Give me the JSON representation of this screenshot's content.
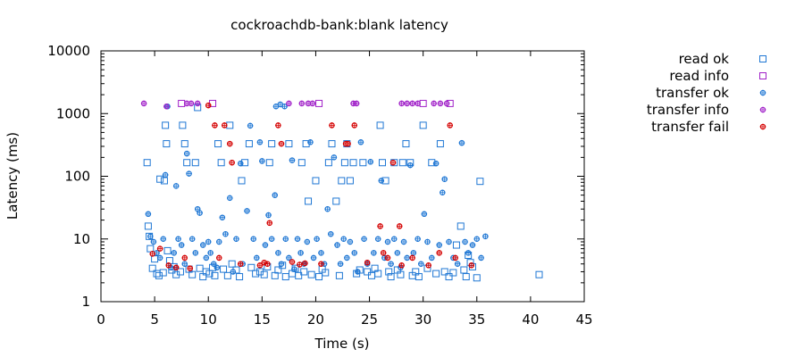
{
  "chart_data": {
    "type": "scatter",
    "title": "cockroachdb-bank:blank latency",
    "xlabel": "Time (s)",
    "ylabel": "Latency (ms)",
    "xlim": [
      0,
      45
    ],
    "ylim": [
      1,
      10000
    ],
    "yscale": "log",
    "x_ticks": [
      "0",
      "5",
      "10",
      "15",
      "20",
      "25",
      "30",
      "35",
      "40",
      "45"
    ],
    "y_ticks": [
      "1",
      "10",
      "100",
      "1000",
      "10000"
    ],
    "grid": false,
    "legend_position": "outside-right",
    "series": [
      {
        "name": "read ok",
        "color": "#1f77d4",
        "marker": "square",
        "points": [
          [
            4.3,
            165
          ],
          [
            4.4,
            16
          ],
          [
            4.5,
            11
          ],
          [
            4.6,
            7
          ],
          [
            4.8,
            3.4
          ],
          [
            5.0,
            4.8
          ],
          [
            5.2,
            2.8
          ],
          [
            5.4,
            2.6
          ],
          [
            5.5,
            90
          ],
          [
            5.8,
            2.9
          ],
          [
            5.9,
            85
          ],
          [
            6.0,
            650
          ],
          [
            6.1,
            330
          ],
          [
            6.2,
            6.5
          ],
          [
            6.4,
            4.5
          ],
          [
            6.6,
            3.2
          ],
          [
            6.8,
            3.6
          ],
          [
            7.0,
            2.7
          ],
          [
            7.4,
            3.0
          ],
          [
            7.6,
            650
          ],
          [
            7.8,
            330
          ],
          [
            8.0,
            165
          ],
          [
            8.2,
            3.3
          ],
          [
            8.5,
            2.7
          ],
          [
            8.8,
            165
          ],
          [
            9.0,
            1250
          ],
          [
            9.2,
            3.4
          ],
          [
            9.5,
            2.5
          ],
          [
            9.8,
            3.0
          ],
          [
            10.1,
            2.8
          ],
          [
            10.4,
            3.5
          ],
          [
            10.6,
            2.6
          ],
          [
            10.9,
            330
          ],
          [
            11.2,
            165
          ],
          [
            11.4,
            3.3
          ],
          [
            11.8,
            2.6
          ],
          [
            12.0,
            650
          ],
          [
            12.2,
            4.0
          ],
          [
            12.6,
            3.2
          ],
          [
            12.9,
            2.5
          ],
          [
            13.1,
            85
          ],
          [
            13.4,
            165
          ],
          [
            13.8,
            330
          ],
          [
            14.0,
            3.5
          ],
          [
            14.4,
            2.8
          ],
          [
            14.8,
            3.0
          ],
          [
            15.2,
            2.7
          ],
          [
            15.5,
            3.6
          ],
          [
            15.7,
            165
          ],
          [
            15.9,
            330
          ],
          [
            16.2,
            2.6
          ],
          [
            16.5,
            3.2
          ],
          [
            16.9,
            3.8
          ],
          [
            17.2,
            2.5
          ],
          [
            17.5,
            330
          ],
          [
            17.8,
            2.8
          ],
          [
            18.1,
            3.4
          ],
          [
            18.4,
            2.6
          ],
          [
            18.7,
            165
          ],
          [
            18.9,
            3.0
          ],
          [
            19.1,
            330
          ],
          [
            19.3,
            40
          ],
          [
            19.6,
            2.7
          ],
          [
            20.0,
            85
          ],
          [
            20.3,
            2.5
          ],
          [
            20.6,
            3.3
          ],
          [
            20.9,
            2.9
          ],
          [
            21.2,
            165
          ],
          [
            21.5,
            330
          ],
          [
            21.9,
            40
          ],
          [
            22.2,
            2.6
          ],
          [
            22.4,
            85
          ],
          [
            22.7,
            165
          ],
          [
            22.9,
            330
          ],
          [
            23.2,
            85
          ],
          [
            23.5,
            165
          ],
          [
            23.8,
            2.8
          ],
          [
            24.1,
            3.2
          ],
          [
            24.4,
            165
          ],
          [
            24.8,
            3.0
          ],
          [
            25.2,
            2.6
          ],
          [
            25.5,
            3.4
          ],
          [
            25.8,
            2.8
          ],
          [
            26.0,
            650
          ],
          [
            26.2,
            165
          ],
          [
            26.5,
            85
          ],
          [
            26.8,
            3.0
          ],
          [
            27.0,
            2.5
          ],
          [
            27.3,
            165
          ],
          [
            27.6,
            3.2
          ],
          [
            27.9,
            2.7
          ],
          [
            28.1,
            165
          ],
          [
            28.4,
            330
          ],
          [
            28.8,
            165
          ],
          [
            29.0,
            2.6
          ],
          [
            29.3,
            3.0
          ],
          [
            29.6,
            2.5
          ],
          [
            30.0,
            650
          ],
          [
            30.4,
            3.4
          ],
          [
            30.8,
            165
          ],
          [
            31.2,
            2.8
          ],
          [
            31.6,
            330
          ],
          [
            32.0,
            3.0
          ],
          [
            32.4,
            2.5
          ],
          [
            32.8,
            2.9
          ],
          [
            33.1,
            8
          ],
          [
            33.5,
            16
          ],
          [
            33.8,
            3.2
          ],
          [
            34.0,
            2.5
          ],
          [
            34.2,
            5.5
          ],
          [
            34.4,
            4.2
          ],
          [
            34.6,
            3.6
          ],
          [
            35.0,
            2.4
          ],
          [
            35.3,
            83
          ],
          [
            40.8,
            2.7
          ]
        ]
      },
      {
        "name": "read info",
        "color": "#a020c8",
        "marker": "square",
        "points": [
          [
            7.5,
            1450
          ],
          [
            10.4,
            1450
          ],
          [
            20.3,
            1450
          ],
          [
            30.0,
            1450
          ],
          [
            32.5,
            1450
          ]
        ]
      },
      {
        "name": "transfer ok",
        "color": "#1f77d4",
        "marker": "star",
        "points": [
          [
            4.4,
            25
          ],
          [
            4.6,
            11
          ],
          [
            4.9,
            9
          ],
          [
            5.2,
            6
          ],
          [
            5.5,
            5
          ],
          [
            5.8,
            10
          ],
          [
            6.0,
            105
          ],
          [
            6.2,
            1300
          ],
          [
            6.5,
            3.5
          ],
          [
            6.8,
            6
          ],
          [
            7.0,
            70
          ],
          [
            7.2,
            10
          ],
          [
            7.5,
            8
          ],
          [
            7.8,
            4
          ],
          [
            8.0,
            230
          ],
          [
            8.2,
            110
          ],
          [
            8.5,
            10
          ],
          [
            8.8,
            6
          ],
          [
            9.0,
            30
          ],
          [
            9.2,
            26
          ],
          [
            9.5,
            8
          ],
          [
            9.8,
            5
          ],
          [
            10.0,
            9
          ],
          [
            10.2,
            6
          ],
          [
            10.5,
            4
          ],
          [
            10.8,
            3.5
          ],
          [
            11.0,
            9
          ],
          [
            11.3,
            22
          ],
          [
            11.6,
            12
          ],
          [
            12.0,
            45
          ],
          [
            12.3,
            3.0
          ],
          [
            12.6,
            10
          ],
          [
            13.0,
            160
          ],
          [
            13.2,
            4
          ],
          [
            13.6,
            28
          ],
          [
            13.9,
            640
          ],
          [
            14.2,
            10
          ],
          [
            14.5,
            5
          ],
          [
            14.8,
            350
          ],
          [
            15.0,
            175
          ],
          [
            15.3,
            8
          ],
          [
            15.6,
            24
          ],
          [
            15.9,
            10
          ],
          [
            16.2,
            50
          ],
          [
            16.5,
            6
          ],
          [
            16.8,
            4
          ],
          [
            17.2,
            10
          ],
          [
            17.5,
            5
          ],
          [
            17.8,
            180
          ],
          [
            18.0,
            3.3
          ],
          [
            18.3,
            10
          ],
          [
            18.6,
            6
          ],
          [
            18.9,
            4
          ],
          [
            19.2,
            9
          ],
          [
            19.5,
            350
          ],
          [
            19.8,
            5
          ],
          [
            20.1,
            10
          ],
          [
            20.5,
            6
          ],
          [
            20.8,
            4
          ],
          [
            21.1,
            30
          ],
          [
            21.4,
            12
          ],
          [
            21.7,
            200
          ],
          [
            22.0,
            8
          ],
          [
            22.3,
            4
          ],
          [
            22.6,
            10
          ],
          [
            22.9,
            5
          ],
          [
            23.2,
            9
          ],
          [
            23.6,
            6
          ],
          [
            23.9,
            3
          ],
          [
            24.2,
            350
          ],
          [
            24.5,
            10
          ],
          [
            24.8,
            4
          ],
          [
            25.1,
            170
          ],
          [
            25.4,
            6
          ],
          [
            25.8,
            10
          ],
          [
            26.1,
            85
          ],
          [
            26.4,
            5
          ],
          [
            26.7,
            9
          ],
          [
            27.0,
            4
          ],
          [
            27.3,
            10
          ],
          [
            27.6,
            6
          ],
          [
            27.9,
            3.5
          ],
          [
            28.2,
            9
          ],
          [
            28.5,
            5
          ],
          [
            28.8,
            150
          ],
          [
            29.1,
            6
          ],
          [
            29.5,
            10
          ],
          [
            29.8,
            4
          ],
          [
            30.1,
            25
          ],
          [
            30.4,
            9
          ],
          [
            30.8,
            5
          ],
          [
            31.2,
            160
          ],
          [
            31.5,
            8
          ],
          [
            31.8,
            55
          ],
          [
            32.0,
            90
          ],
          [
            32.4,
            9
          ],
          [
            32.8,
            5
          ],
          [
            33.2,
            4
          ],
          [
            33.6,
            340
          ],
          [
            33.9,
            9
          ],
          [
            34.2,
            6
          ],
          [
            34.6,
            8
          ],
          [
            35.0,
            10
          ],
          [
            35.4,
            5
          ],
          [
            35.8,
            11
          ],
          [
            16.3,
            1300
          ],
          [
            16.7,
            1400
          ],
          [
            17.1,
            1300
          ]
        ]
      },
      {
        "name": "transfer info",
        "color": "#a020c8",
        "marker": "star",
        "points": [
          [
            4.0,
            1450
          ],
          [
            6.1,
            1300
          ],
          [
            8.0,
            1450
          ],
          [
            8.4,
            1450
          ],
          [
            9.0,
            1450
          ],
          [
            17.5,
            1450
          ],
          [
            18.7,
            1450
          ],
          [
            19.3,
            1450
          ],
          [
            19.7,
            1450
          ],
          [
            23.5,
            1450
          ],
          [
            23.8,
            1450
          ],
          [
            28.0,
            1450
          ],
          [
            28.5,
            1450
          ],
          [
            29.0,
            1450
          ],
          [
            29.5,
            1450
          ],
          [
            31.0,
            1450
          ],
          [
            31.6,
            1450
          ],
          [
            32.2,
            1450
          ]
        ]
      },
      {
        "name": "transfer fail",
        "color": "#d40000",
        "marker": "star",
        "points": [
          [
            4.8,
            5.8
          ],
          [
            5.5,
            7
          ],
          [
            6.3,
            3.8
          ],
          [
            7.0,
            3.5
          ],
          [
            7.8,
            5
          ],
          [
            8.3,
            3.4
          ],
          [
            10.0,
            1350
          ],
          [
            10.6,
            650
          ],
          [
            11.5,
            650
          ],
          [
            12.0,
            330
          ],
          [
            12.2,
            165
          ],
          [
            13.0,
            4
          ],
          [
            15.2,
            4.2
          ],
          [
            15.5,
            4.0
          ],
          [
            15.7,
            18
          ],
          [
            16.5,
            650
          ],
          [
            16.8,
            330
          ],
          [
            17.8,
            4.3
          ],
          [
            18.5,
            3.9
          ],
          [
            19.0,
            4.1
          ],
          [
            21.5,
            650
          ],
          [
            22.8,
            330
          ],
          [
            23.0,
            330
          ],
          [
            23.6,
            650
          ],
          [
            26.0,
            16
          ],
          [
            26.3,
            6
          ],
          [
            26.7,
            5
          ],
          [
            27.2,
            165
          ],
          [
            27.8,
            16
          ],
          [
            28.0,
            3.8
          ],
          [
            29.0,
            5
          ],
          [
            30.5,
            3.8
          ],
          [
            31.5,
            6
          ],
          [
            32.5,
            650
          ],
          [
            34.5,
            3.8
          ],
          [
            33.0,
            5
          ],
          [
            11.0,
            5
          ],
          [
            14.8,
            3.8
          ],
          [
            24.8,
            4.2
          ],
          [
            20.5,
            4.0
          ]
        ]
      }
    ]
  }
}
